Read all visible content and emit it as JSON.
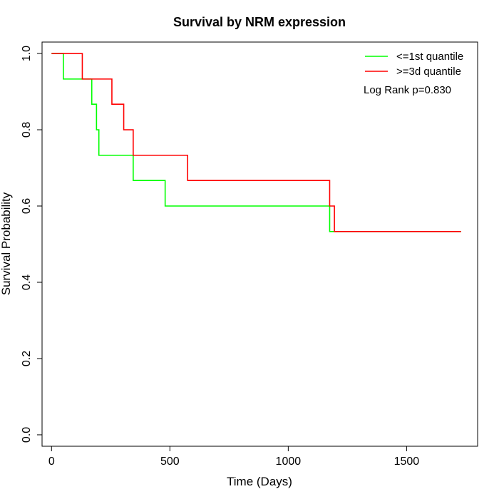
{
  "chart_data": {
    "type": "line",
    "step": true,
    "title": "Survival by NRM expression",
    "xlabel": "Time (Days)",
    "ylabel": "Survival Probability",
    "xlim": [
      -40,
      1800
    ],
    "ylim": [
      -0.03,
      1.03
    ],
    "xticks": [
      0,
      500,
      1000,
      1500
    ],
    "yticks": [
      0.0,
      0.2,
      0.4,
      0.6,
      0.8,
      1.0
    ],
    "xtick_labels": [
      "0",
      "500",
      "1000",
      "1500"
    ],
    "ytick_labels": [
      "0.0",
      "0.2",
      "0.4",
      "0.6",
      "0.8",
      "1.0"
    ],
    "grid": false,
    "legend_position": "top-right",
    "annotation": "Log Rank p=0.830",
    "series": [
      {
        "name": "<=1st quantile",
        "color": "#00ff00",
        "x": [
          0,
          50,
          170,
          190,
          200,
          345,
          480,
          1175,
          1200,
          1730
        ],
        "y": [
          1.0,
          0.933,
          0.867,
          0.8,
          0.733,
          0.667,
          0.6,
          0.533,
          0.533,
          0.533
        ]
      },
      {
        "name": ">=3d quantile",
        "color": "#ff0000",
        "x": [
          0,
          130,
          255,
          305,
          345,
          575,
          1175,
          1195,
          1730
        ],
        "y": [
          1.0,
          0.933,
          0.867,
          0.8,
          0.733,
          0.667,
          0.6,
          0.533,
          0.533
        ]
      }
    ]
  }
}
